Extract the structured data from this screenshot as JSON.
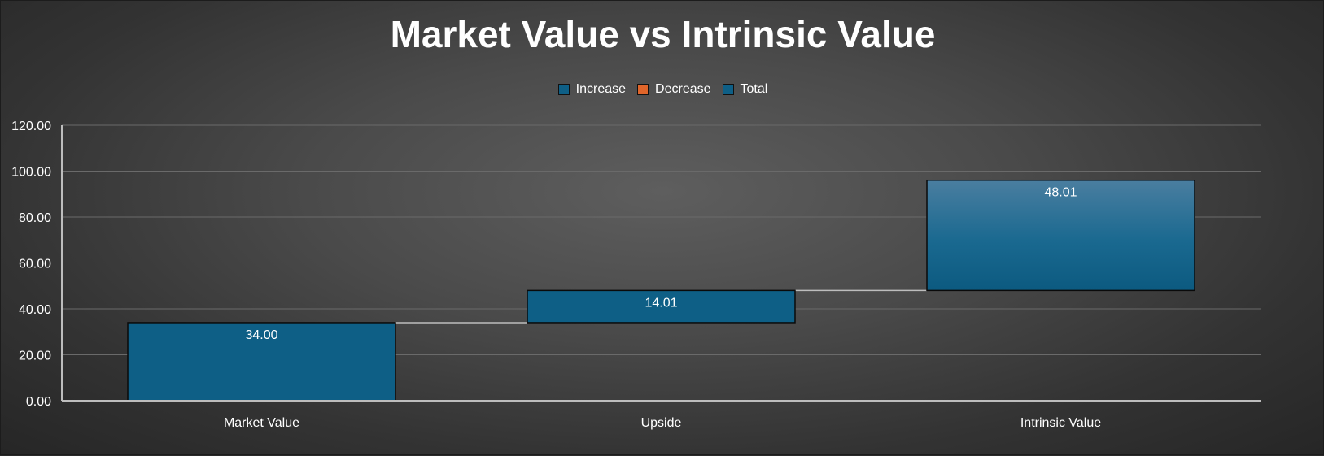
{
  "chart_data": {
    "type": "waterfall",
    "title": "Market Value vs Intrinsic Value",
    "categories": [
      "Market Value",
      "Upside",
      "Intrinsic Value"
    ],
    "values": [
      34.0,
      14.01,
      48.01
    ],
    "bases": [
      0,
      34.0,
      48.01
    ],
    "kinds": [
      "total",
      "increase",
      "increase"
    ],
    "data_labels": [
      "34.00",
      "14.01",
      "48.01"
    ],
    "ylim": [
      0,
      120
    ],
    "yticks": [
      0,
      20,
      40,
      60,
      80,
      100,
      120
    ],
    "ytick_labels": [
      "0.00",
      "20.00",
      "40.00",
      "60.00",
      "80.00",
      "100.00",
      "120.00"
    ],
    "grid": true,
    "legend_position": "top",
    "legend": [
      {
        "name": "Increase",
        "color": "#0e5f86"
      },
      {
        "name": "Decrease",
        "color": "#e0652a"
      },
      {
        "name": "Total",
        "color": "#0e5f86"
      }
    ],
    "colors": {
      "bar": "#0e5f86",
      "connector": "#bdbdbd",
      "axis": "#bdbdbd",
      "grid": "#6a6a6a",
      "text": "#ffffff"
    }
  }
}
